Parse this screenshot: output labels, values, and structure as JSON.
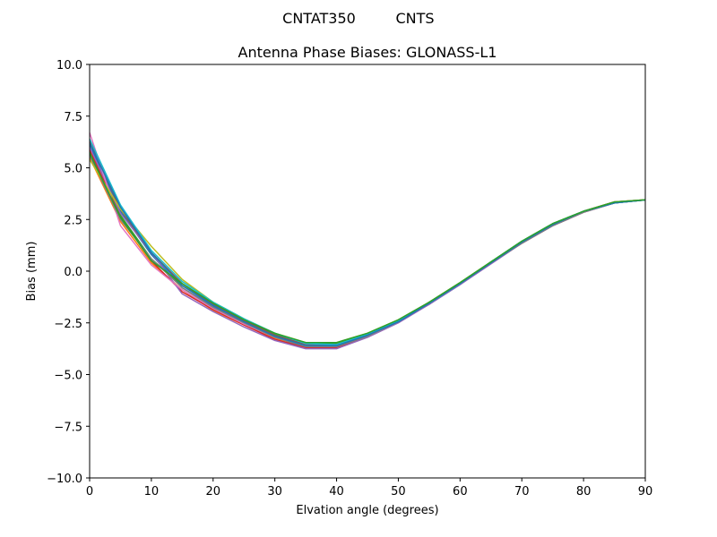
{
  "header": {
    "antenna": "CNTAT350",
    "radome": "CNTS"
  },
  "chart_data": {
    "type": "line",
    "title": "Antenna Phase Biases: GLONASS-L1",
    "xlabel": "Elvation angle (degrees)",
    "ylabel": "Bias (mm)",
    "xlim": [
      0,
      90
    ],
    "ylim": [
      -10,
      10
    ],
    "xticks": [
      0,
      10,
      20,
      30,
      40,
      50,
      60,
      70,
      80,
      90
    ],
    "xtick_labels": [
      "0",
      "10",
      "20",
      "30",
      "40",
      "50",
      "60",
      "70",
      "80",
      "90"
    ],
    "yticks": [
      10,
      7.5,
      5,
      2.5,
      0,
      -2.5,
      -5,
      -7.5,
      -10
    ],
    "ytick_labels": [
      "10.0",
      "7.5",
      "5.0",
      "2.5",
      "0.0",
      "−2.5",
      "−5.0",
      "−7.5",
      "−10.0"
    ],
    "grid": false,
    "legend": "none",
    "x": [
      0,
      5,
      10,
      15,
      20,
      25,
      30,
      35,
      40,
      45,
      50,
      55,
      60,
      65,
      70,
      75,
      80,
      85,
      90
    ],
    "series": [
      {
        "color": "#1f77b4",
        "values": [
          6.1,
          2.9,
          0.8,
          -0.8,
          -1.7,
          -2.5,
          -3.2,
          -3.7,
          -3.65,
          -3.15,
          -2.45,
          -1.6,
          -0.65,
          0.4,
          1.4,
          2.25,
          2.9,
          3.3,
          3.45
        ]
      },
      {
        "color": "#ff7f0e",
        "values": [
          5.5,
          2.4,
          0.4,
          -0.9,
          -1.9,
          -2.6,
          -3.25,
          -3.6,
          -3.6,
          -3.1,
          -2.4,
          -1.55,
          -0.6,
          0.45,
          1.4,
          2.25,
          2.9,
          3.35,
          3.45
        ]
      },
      {
        "color": "#2ca02c",
        "values": [
          5.8,
          2.7,
          0.6,
          -0.7,
          -1.6,
          -2.35,
          -3.05,
          -3.5,
          -3.5,
          -3.05,
          -2.4,
          -1.5,
          -0.55,
          0.45,
          1.45,
          2.3,
          2.9,
          3.3,
          3.45
        ]
      },
      {
        "color": "#d62728",
        "values": [
          5.9,
          2.6,
          0.5,
          -1.0,
          -1.85,
          -2.6,
          -3.3,
          -3.7,
          -3.7,
          -3.15,
          -2.45,
          -1.6,
          -0.6,
          0.4,
          1.35,
          2.2,
          2.85,
          3.3,
          3.45
        ]
      },
      {
        "color": "#9467bd",
        "values": [
          6.0,
          2.8,
          0.9,
          -1.1,
          -1.95,
          -2.7,
          -3.35,
          -3.75,
          -3.75,
          -3.2,
          -2.5,
          -1.6,
          -0.65,
          0.35,
          1.35,
          2.2,
          2.85,
          3.3,
          3.45
        ]
      },
      {
        "color": "#8c564b",
        "values": [
          6.3,
          3.0,
          0.9,
          -0.6,
          -1.6,
          -2.4,
          -3.1,
          -3.55,
          -3.55,
          -3.1,
          -2.45,
          -1.55,
          -0.6,
          0.4,
          1.4,
          2.25,
          2.9,
          3.35,
          3.45
        ]
      },
      {
        "color": "#e377c2",
        "values": [
          6.7,
          2.2,
          0.3,
          -0.9,
          -1.8,
          -2.55,
          -3.2,
          -3.6,
          -3.6,
          -3.15,
          -2.45,
          -1.55,
          -0.6,
          0.4,
          1.4,
          2.25,
          2.9,
          3.35,
          3.45
        ]
      },
      {
        "color": "#7f7f7f",
        "values": [
          5.6,
          2.5,
          0.6,
          -0.8,
          -1.75,
          -2.5,
          -3.2,
          -3.65,
          -3.65,
          -3.15,
          -2.45,
          -1.55,
          -0.6,
          0.4,
          1.35,
          2.2,
          2.85,
          3.3,
          3.45
        ]
      },
      {
        "color": "#bcbd22",
        "values": [
          5.4,
          3.0,
          1.2,
          -0.4,
          -1.5,
          -2.3,
          -3.0,
          -3.45,
          -3.45,
          -3.0,
          -2.35,
          -1.5,
          -0.55,
          0.45,
          1.45,
          2.3,
          2.9,
          3.35,
          3.45
        ]
      },
      {
        "color": "#17becf",
        "values": [
          6.4,
          3.2,
          1.0,
          -0.5,
          -1.5,
          -2.3,
          -3.0,
          -3.5,
          -3.55,
          -3.05,
          -2.4,
          -1.55,
          -0.6,
          0.45,
          1.45,
          2.3,
          2.9,
          3.3,
          3.45
        ]
      },
      {
        "color": "#1f77b4",
        "values": [
          6.2,
          3.1,
          0.9,
          -0.7,
          -1.65,
          -2.45,
          -3.15,
          -3.6,
          -3.6,
          -3.1,
          -2.45,
          -1.55,
          -0.6,
          0.4,
          1.4,
          2.25,
          2.9,
          3.3,
          3.45
        ]
      },
      {
        "color": "#2ca02c",
        "values": [
          5.7,
          2.6,
          0.5,
          -0.6,
          -1.55,
          -2.35,
          -3.0,
          -3.45,
          -3.45,
          -3.0,
          -2.35,
          -1.5,
          -0.55,
          0.45,
          1.45,
          2.3,
          2.9,
          3.35,
          3.45
        ]
      }
    ]
  }
}
